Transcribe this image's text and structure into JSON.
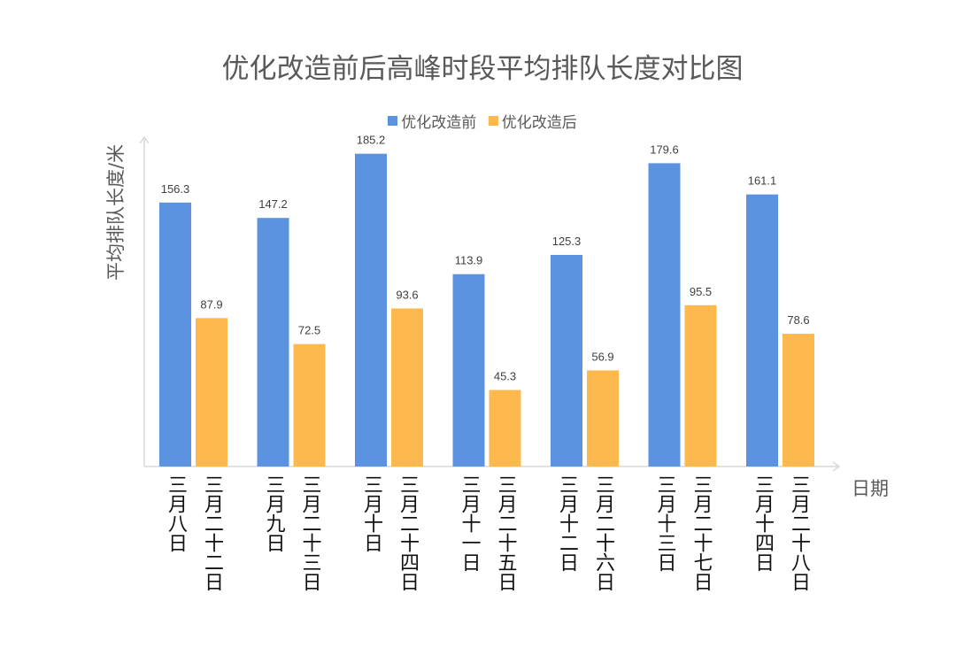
{
  "chart_data": {
    "type": "bar",
    "title": "优化改造前后高峰时段平均排队长度对比图",
    "ylabel": "平均排队长度/米",
    "xlabel": "日期",
    "ylim": [
      0,
      195
    ],
    "grid": false,
    "legend_position": "top",
    "series": [
      {
        "name": "优化改造前",
        "color": "#5B93E0",
        "categories": [
          "三月八日",
          "三月九日",
          "三月十日",
          "三月十一日",
          "三月十二日",
          "三月十三日",
          "三月十四日"
        ],
        "values": [
          156.3,
          147.2,
          185.2,
          113.9,
          125.3,
          179.6,
          161.1
        ]
      },
      {
        "name": "优化改造后",
        "color": "#FDB94E",
        "categories": [
          "三月二十二日",
          "三月二十三日",
          "三月二十四日",
          "三月二十五日",
          "三月二十六日",
          "三月二十七日",
          "三月二十八日"
        ],
        "values": [
          87.9,
          72.5,
          93.6,
          45.3,
          56.9,
          95.5,
          78.6
        ]
      }
    ]
  }
}
